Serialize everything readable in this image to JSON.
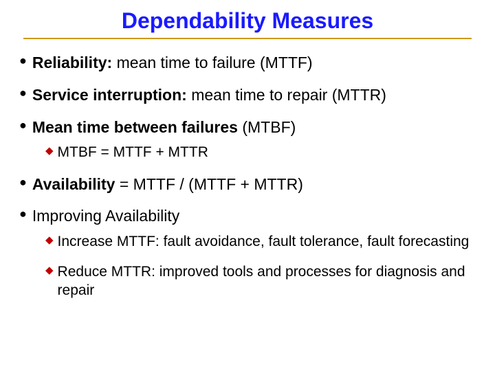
{
  "colors": {
    "title": "#1a1aff",
    "underline": "#cc9900",
    "bullet_circle": "#000000",
    "sub_diamond": "#c00000",
    "body_text": "#000000"
  },
  "title": "Dependability Measures",
  "items": [
    {
      "bold": "Reliability:",
      "rest": " mean time to failure (MTTF)"
    },
    {
      "bold": "Service interruption:",
      "rest": " mean time to repair (MTTR)"
    },
    {
      "bold": "Mean time between failures",
      "rest": " (MTBF)",
      "sub": [
        {
          "text": "MTBF = MTTF + MTTR"
        }
      ]
    },
    {
      "bold": "Availability",
      "rest": " = MTTF / (MTTF + MTTR)"
    },
    {
      "bold": "",
      "rest": "Improving Availability",
      "sub": [
        {
          "text": "Increase MTTF: fault avoidance, fault tolerance, fault forecasting"
        },
        {
          "text": "Reduce MTTR: improved tools and processes for diagnosis and repair"
        }
      ]
    }
  ]
}
